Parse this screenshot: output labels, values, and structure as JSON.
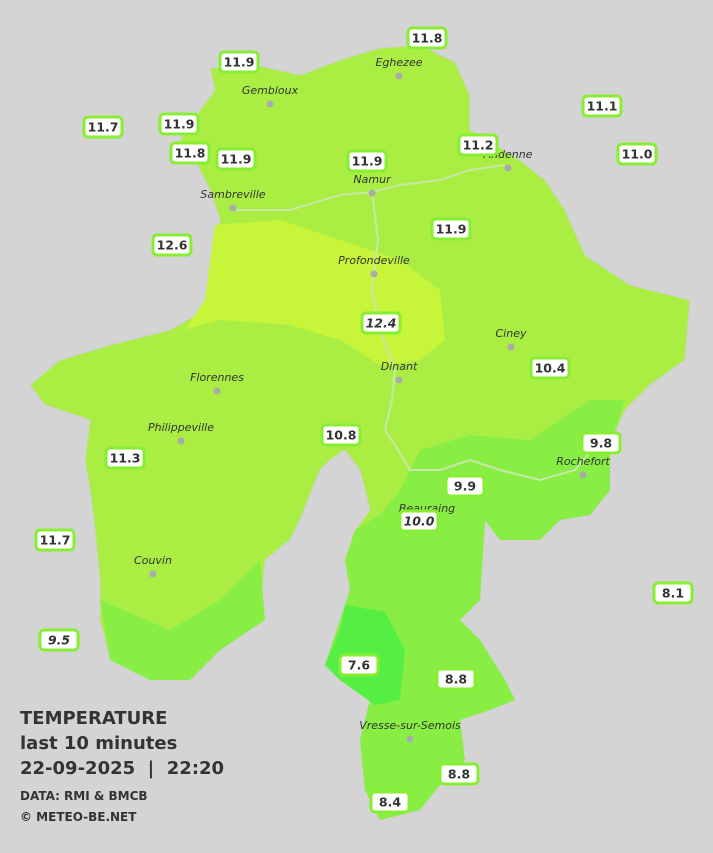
{
  "legend": {
    "title": "TEMPERATURE",
    "subtitle": "last 10 minutes",
    "datetime": "22-09-2025  |  22:20",
    "source": "DATA: RMI & BMCB",
    "copyright": "© METEO-BE.NET"
  },
  "cities": [
    "Eghezee",
    "Gembloux",
    "Andenne",
    "Sambreville",
    "Namur",
    "Profondeville",
    "Ciney",
    "Florennes",
    "Dinant",
    "Philippeville",
    "Rochefort",
    "Beauraing",
    "Couvin",
    "Vresse-sur-Semois"
  ],
  "stations": [
    {
      "reading": "11.9",
      "italic": false
    },
    {
      "reading": "11.8",
      "italic": false
    },
    {
      "reading": "11.1",
      "italic": false
    },
    {
      "reading": "11.7",
      "italic": false
    },
    {
      "reading": "11.9",
      "italic": false
    },
    {
      "reading": "11.8",
      "italic": false
    },
    {
      "reading": "11.9",
      "italic": false
    },
    {
      "reading": "11.9",
      "italic": false
    },
    {
      "reading": "11.2",
      "italic": false
    },
    {
      "reading": "11.0",
      "italic": false
    },
    {
      "reading": "11.9",
      "italic": false
    },
    {
      "reading": "12.6",
      "italic": false
    },
    {
      "reading": "12.4",
      "italic": true
    },
    {
      "reading": "10.4",
      "italic": false
    },
    {
      "reading": "10.8",
      "italic": false
    },
    {
      "reading": "9.8",
      "italic": false
    },
    {
      "reading": "11.3",
      "italic": false
    },
    {
      "reading": "9.9",
      "italic": false
    },
    {
      "reading": "10.0",
      "italic": true
    },
    {
      "reading": "11.7",
      "italic": false
    },
    {
      "reading": "8.1",
      "italic": false
    },
    {
      "reading": "9.5",
      "italic": true
    },
    {
      "reading": "7.6",
      "italic": false
    },
    {
      "reading": "8.8",
      "italic": false
    },
    {
      "reading": "8.8",
      "italic": false
    },
    {
      "reading": "8.4",
      "italic": false
    }
  ]
}
